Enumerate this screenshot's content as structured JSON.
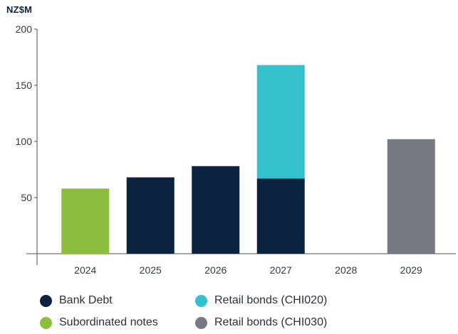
{
  "chart_data": {
    "type": "bar",
    "stacked": true,
    "unit_label": "NZ$M",
    "categories": [
      "2024",
      "2025",
      "2026",
      "2027",
      "2028",
      "2029"
    ],
    "yticks": [
      50,
      100,
      150,
      200
    ],
    "ylim": [
      0,
      200
    ],
    "grid": false,
    "legend_position": "bottom",
    "series": [
      {
        "name": "Bank Debt",
        "color": "#0c2340",
        "values": [
          0,
          68,
          78,
          67,
          0,
          0
        ]
      },
      {
        "name": "Retail bonds (CHI020)",
        "color": "#33c1cc",
        "values": [
          0,
          0,
          0,
          101,
          0,
          0
        ]
      },
      {
        "name": "Subordinated notes",
        "color": "#8bbd3f",
        "values": [
          58,
          0,
          0,
          0,
          0,
          0
        ]
      },
      {
        "name": "Retail bonds (CHI030)",
        "color": "#767a82",
        "values": [
          0,
          0,
          0,
          0,
          0,
          102
        ]
      }
    ],
    "legend_order": [
      0,
      1,
      2,
      3
    ]
  }
}
